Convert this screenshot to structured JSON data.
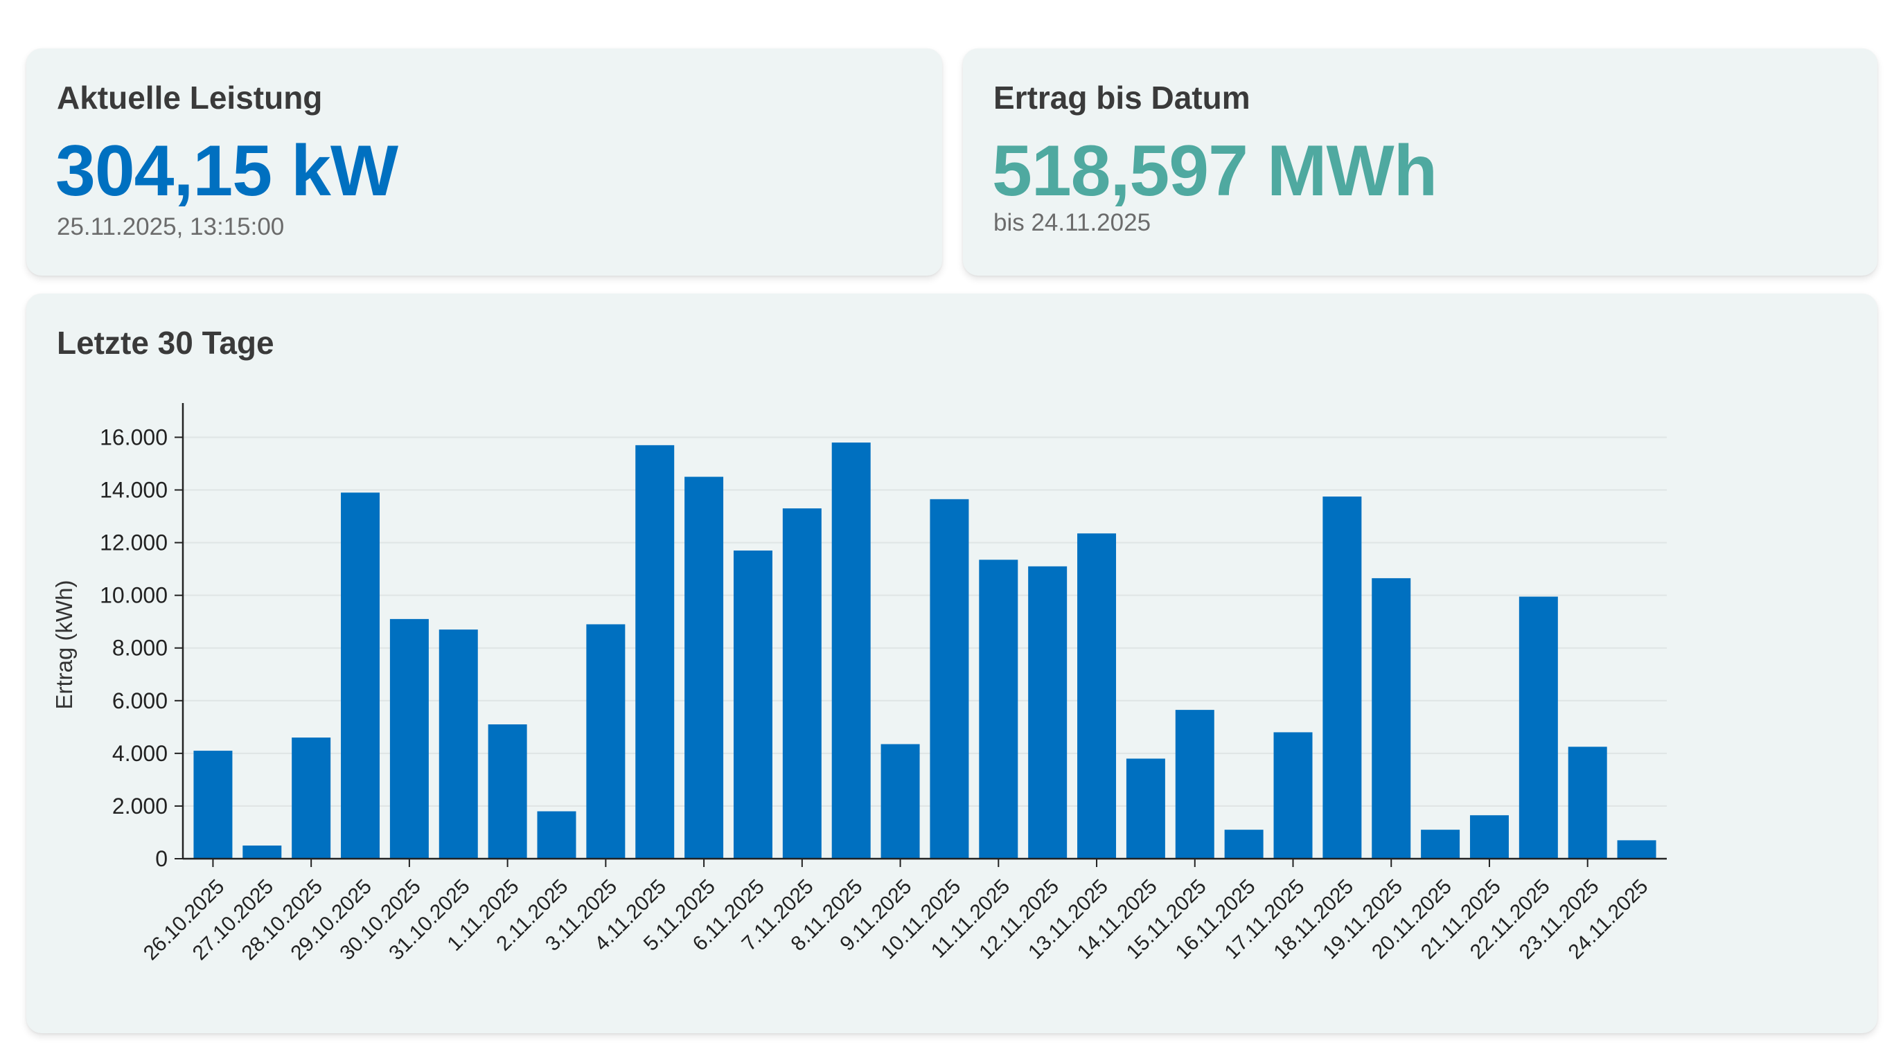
{
  "cards": {
    "power": {
      "title": "Aktuelle Leistung",
      "value": "304,15 kW",
      "timestamp": "25.11.2025, 13:15:00"
    },
    "yield": {
      "title": "Ertrag bis Datum",
      "value": "518,597 MWh",
      "subtitle": "bis 24.11.2025"
    }
  },
  "colors": {
    "power_value": "#0070c0",
    "yield_value": "#4fa9a0",
    "bar": "#0070c0",
    "card_background": "#eef4f4"
  },
  "chart_data": {
    "type": "bar",
    "title": "Letzte 30 Tage",
    "xlabel": "",
    "ylabel": "Ertrag (kWh)",
    "ylim": [
      0,
      17300
    ],
    "yticks": [
      0,
      2000,
      4000,
      6000,
      8000,
      10000,
      12000,
      14000,
      16000
    ],
    "ytick_labels": [
      "0",
      "2.000",
      "4.000",
      "6.000",
      "8.000",
      "10.000",
      "12.000",
      "14.000",
      "16.000"
    ],
    "grid": true,
    "legend": "none",
    "categories": [
      "26.10.2025",
      "27.10.2025",
      "28.10.2025",
      "29.10.2025",
      "30.10.2025",
      "31.10.2025",
      "1.11.2025",
      "2.11.2025",
      "3.11.2025",
      "4.11.2025",
      "5.11.2025",
      "6.11.2025",
      "7.11.2025",
      "8.11.2025",
      "9.11.2025",
      "10.11.2025",
      "11.11.2025",
      "12.11.2025",
      "13.11.2025",
      "14.11.2025",
      "15.11.2025",
      "16.11.2025",
      "17.11.2025",
      "18.11.2025",
      "19.11.2025",
      "20.11.2025",
      "21.11.2025",
      "22.11.2025",
      "23.11.2025",
      "24.11.2025"
    ],
    "values": [
      4100,
      500,
      4600,
      13900,
      9100,
      8700,
      5100,
      1800,
      8900,
      15700,
      14500,
      11700,
      13300,
      15800,
      4350,
      13650,
      11350,
      11100,
      12350,
      3800,
      5650,
      1100,
      4800,
      13750,
      10650,
      1100,
      1650,
      9950,
      4250,
      700
    ]
  }
}
